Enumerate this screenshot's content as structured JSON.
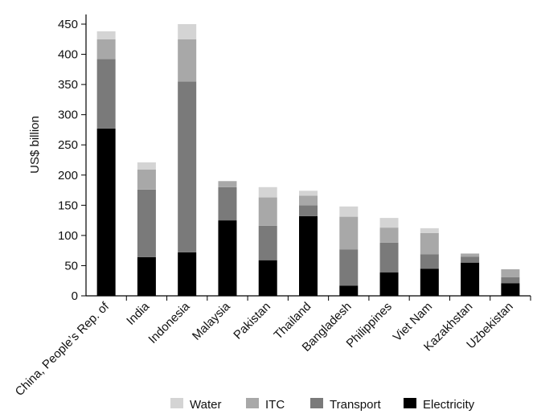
{
  "chart_data": {
    "type": "bar",
    "stacked": true,
    "title": "",
    "xlabel": "",
    "ylabel": "US$ billion",
    "ylim": [
      0,
      450
    ],
    "yticks": [
      0,
      50,
      100,
      150,
      200,
      250,
      300,
      350,
      400,
      450
    ],
    "grid": false,
    "legend_position": "bottom",
    "categories": [
      "China, People’s Rep. of",
      "India",
      "Indonesia",
      "Malaysia",
      "Pakistan",
      "Thailand",
      "Bangladesh",
      "Philippines",
      "Viet Nam",
      "Kazakhstan",
      "Uzbekistan"
    ],
    "series": [
      {
        "name": "Electricity",
        "color": "#000000",
        "values": [
          277,
          64,
          72,
          125,
          59,
          132,
          17,
          39,
          45,
          55,
          21
        ]
      },
      {
        "name": "Transport",
        "color": "#7a7a7a",
        "values": [
          115,
          112,
          283,
          55,
          57,
          18,
          60,
          49,
          24,
          10,
          10
        ]
      },
      {
        "name": "ITC",
        "color": "#a8a8a8",
        "values": [
          33,
          33,
          70,
          10,
          47,
          16,
          54,
          25,
          35,
          5,
          13
        ]
      },
      {
        "name": "Water",
        "color": "#d4d4d4",
        "values": [
          13,
          12,
          25,
          0,
          17,
          8,
          17,
          16,
          8,
          0,
          0
        ]
      }
    ],
    "legend_order": [
      "Water",
      "ITC",
      "Transport",
      "Electricity"
    ]
  }
}
